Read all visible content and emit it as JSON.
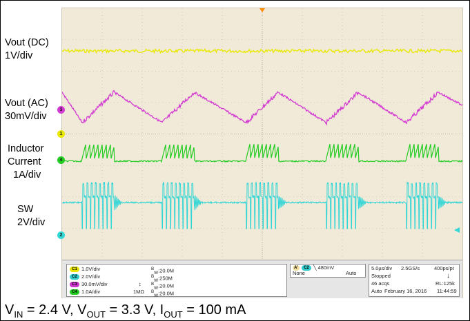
{
  "channel_labels": [
    {
      "title": "Vout (DC)",
      "scale": "1V/div"
    },
    {
      "title": "Vout (AC)",
      "scale": "30mV/div"
    },
    {
      "title": "Inductor",
      "title2": "Current",
      "scale": "1A/div"
    },
    {
      "title": "SW",
      "scale": "2V/div"
    }
  ],
  "markers": [
    "1",
    "3",
    "4",
    "2"
  ],
  "channel_settings": [
    {
      "chip": "C1",
      "scale": "1.0V/div",
      "extra": "",
      "bw": "20.0M",
      "color": "#e6e600"
    },
    {
      "chip": "C2",
      "scale": "2.0V/div",
      "extra": "",
      "bw": "250M",
      "color": "#33cccc"
    },
    {
      "chip": "C3",
      "scale": "30.0mV/div",
      "extra": "",
      "bw": "20.0M",
      "color": "#cc33cc"
    },
    {
      "chip": "C4",
      "scale": "1.0A/div",
      "extra": "1MΩ",
      "bw": "20.0M",
      "color": "#22cc22"
    }
  ],
  "bw_prefix": "B",
  "bw_sub": "W",
  "trigger": {
    "a_label": "A'",
    "chip": "C2",
    "level": "480mV",
    "source": "None",
    "mode": "Auto"
  },
  "acquisition": {
    "timebase": "5.0µs/div",
    "sample_rate": "2.5GS/s",
    "resolution": "400ps/pt",
    "state": "Stopped",
    "acqs": "46 acqs",
    "record_length": "RL:125k",
    "trigger_mode": "Auto",
    "date": "February 16, 2016",
    "time": "11:44:59"
  },
  "caption": {
    "vin_sub": "IN",
    "vin_val": " = 2.4 V, V",
    "vout_sub": "OUT",
    "vout_val": " = 3.3 V, I",
    "iout_sub": "OUT",
    "iout_val": " = 100 mA"
  },
  "colors": {
    "ch1": "#e8e800",
    "ch2": "#33d6d6",
    "ch3": "#d23ad2",
    "ch4": "#22cc22",
    "grid": "#b8b0a0",
    "trigger_marker": "#ff8c00"
  },
  "chart_data": {
    "type": "line",
    "grid_divisions": {
      "x": 10,
      "y": 8
    },
    "switching_burst_centers_div": [
      0.9,
      2.9,
      5.0,
      7.0,
      9.0
    ],
    "burst_width_div": 0.8
  }
}
